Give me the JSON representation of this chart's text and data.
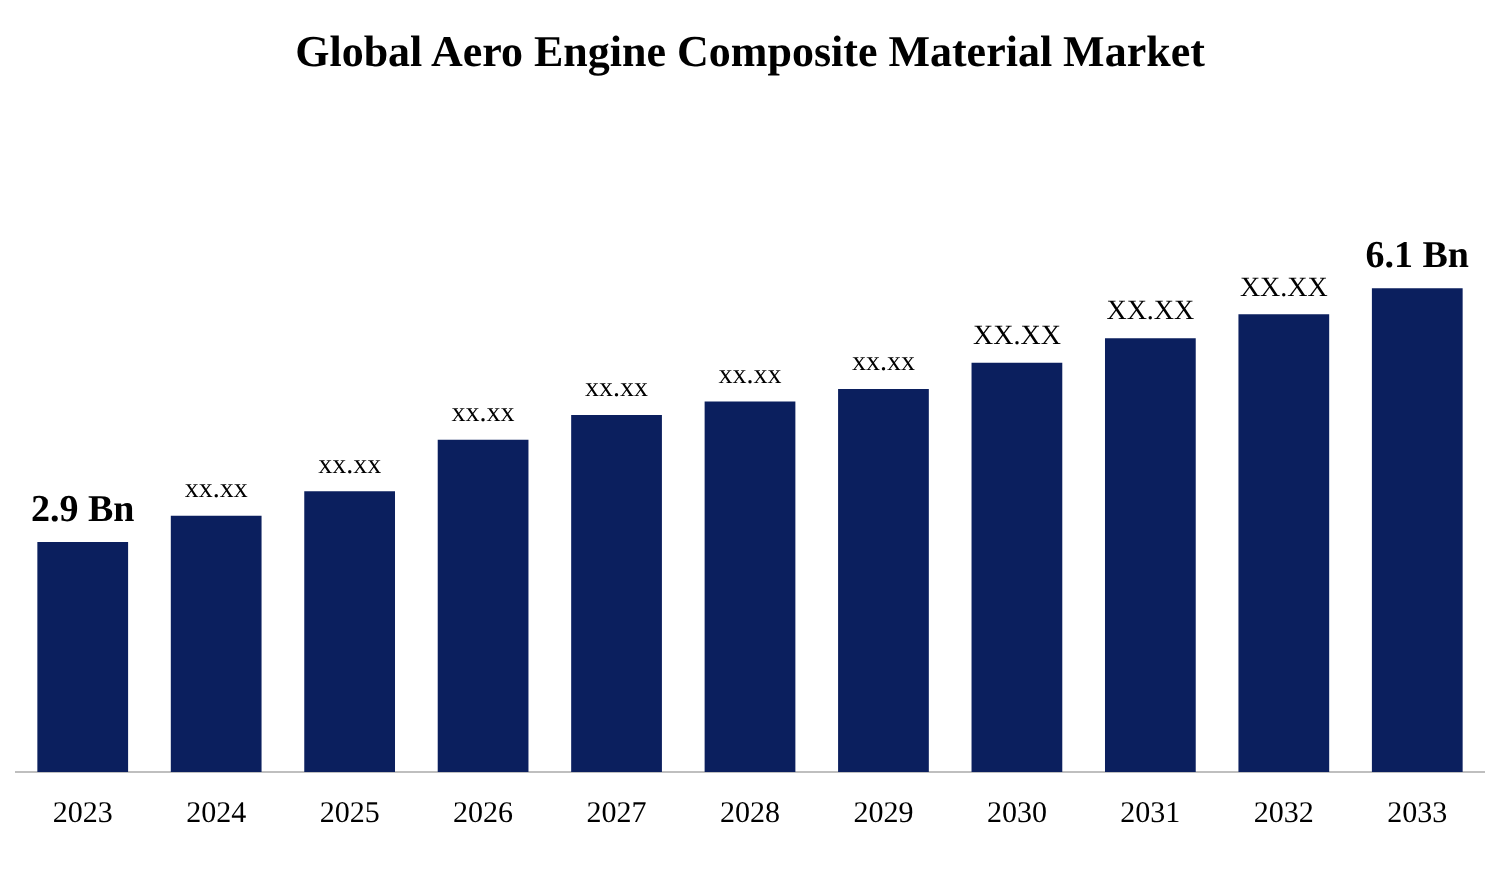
{
  "chart_data": {
    "type": "bar",
    "title": "Global Aero Engine Composite Material Market",
    "categories": [
      "2023",
      "2024",
      "2025",
      "2026",
      "2027",
      "2028",
      "2029",
      "2030",
      "2031",
      "2032",
      "2033"
    ],
    "values": [
      2.9,
      3.23,
      3.54,
      4.19,
      4.5,
      4.67,
      4.83,
      5.16,
      5.47,
      5.77,
      6.1
    ],
    "value_labels": [
      "2.9 Bn",
      "xx.xx",
      "xx.xx",
      "xx.xx",
      "xx.xx",
      "xx.xx",
      "xx.xx",
      "XX.XX",
      "XX.XX",
      "XX.XX",
      "6.1 Bn"
    ],
    "color": "#0b1f5e",
    "grid": false,
    "legend": false
  }
}
